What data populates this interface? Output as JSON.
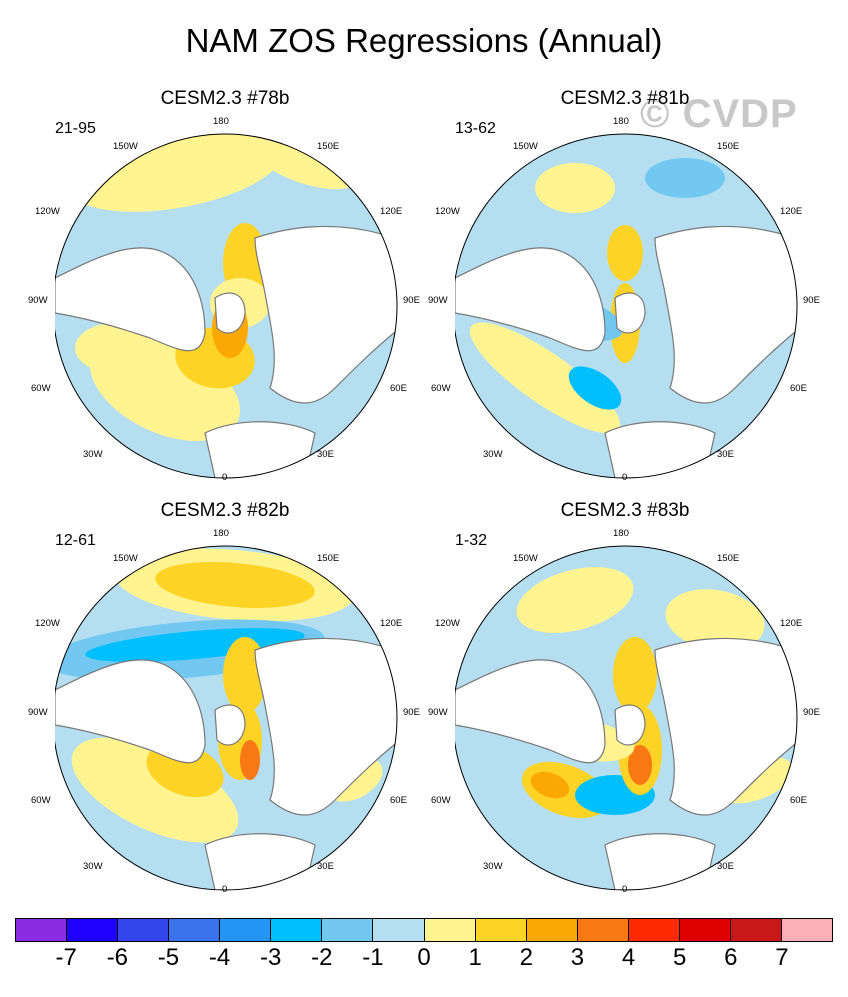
{
  "title": "NAM ZOS Regressions (Annual)",
  "watermark": "© CVDP",
  "lon_labels": {
    "top": "180",
    "upper_left": "150W",
    "upper_right": "150E",
    "mid_upper_left": "120W",
    "mid_upper_right": "120E",
    "left": "90W",
    "right": "90E",
    "mid_lower_left": "60W",
    "mid_lower_right": "60E",
    "lower_left": "30W",
    "lower_right": "30E",
    "bottom": "0"
  },
  "panels": [
    {
      "title": "CESM2.3 #78b",
      "range": "21-95"
    },
    {
      "title": "CESM2.3 #81b",
      "range": "13-62"
    },
    {
      "title": "CESM2.3 #82b",
      "range": "12-61"
    },
    {
      "title": "CESM2.3 #83b",
      "range": "1-32"
    }
  ],
  "colorbar": {
    "colors": [
      "#8a2be2",
      "#1e00ff",
      "#3344e8",
      "#3a73ec",
      "#2495f5",
      "#00bfff",
      "#72c8f0",
      "#b5dff1",
      "#fff48f",
      "#fdd326",
      "#fba805",
      "#f87814",
      "#ff2a00",
      "#e00000",
      "#c81818",
      "#fbb0b8"
    ],
    "labels": [
      "-7",
      "-6",
      "-5",
      "-4",
      "-3",
      "-2",
      "-1",
      "0",
      "1",
      "2",
      "3",
      "4",
      "5",
      "6",
      "7"
    ]
  }
}
